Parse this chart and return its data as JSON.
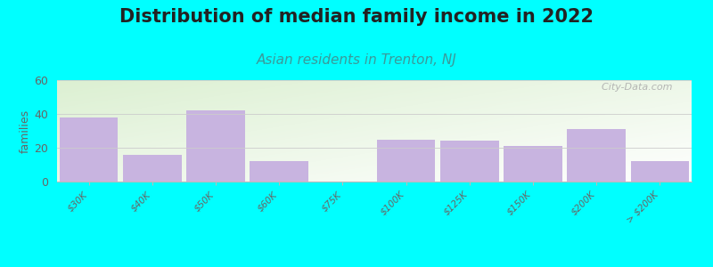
{
  "title": "Distribution of median family income in 2022",
  "subtitle": "Asian residents in Trenton, NJ",
  "categories": [
    "$30K",
    "$40K",
    "$50K",
    "$60K",
    "$75K",
    "$100K",
    "$125K",
    "$150K",
    "$200K",
    "> $200K"
  ],
  "values": [
    38,
    16,
    42,
    12,
    0,
    25,
    24,
    21,
    31,
    12
  ],
  "bar_color": "#c8b4e0",
  "ylabel": "families",
  "ylim": [
    0,
    60
  ],
  "yticks": [
    0,
    20,
    40,
    60
  ],
  "background_color": "#00ffff",
  "title_fontsize": 15,
  "subtitle_fontsize": 11,
  "watermark": "  City-Data.com"
}
